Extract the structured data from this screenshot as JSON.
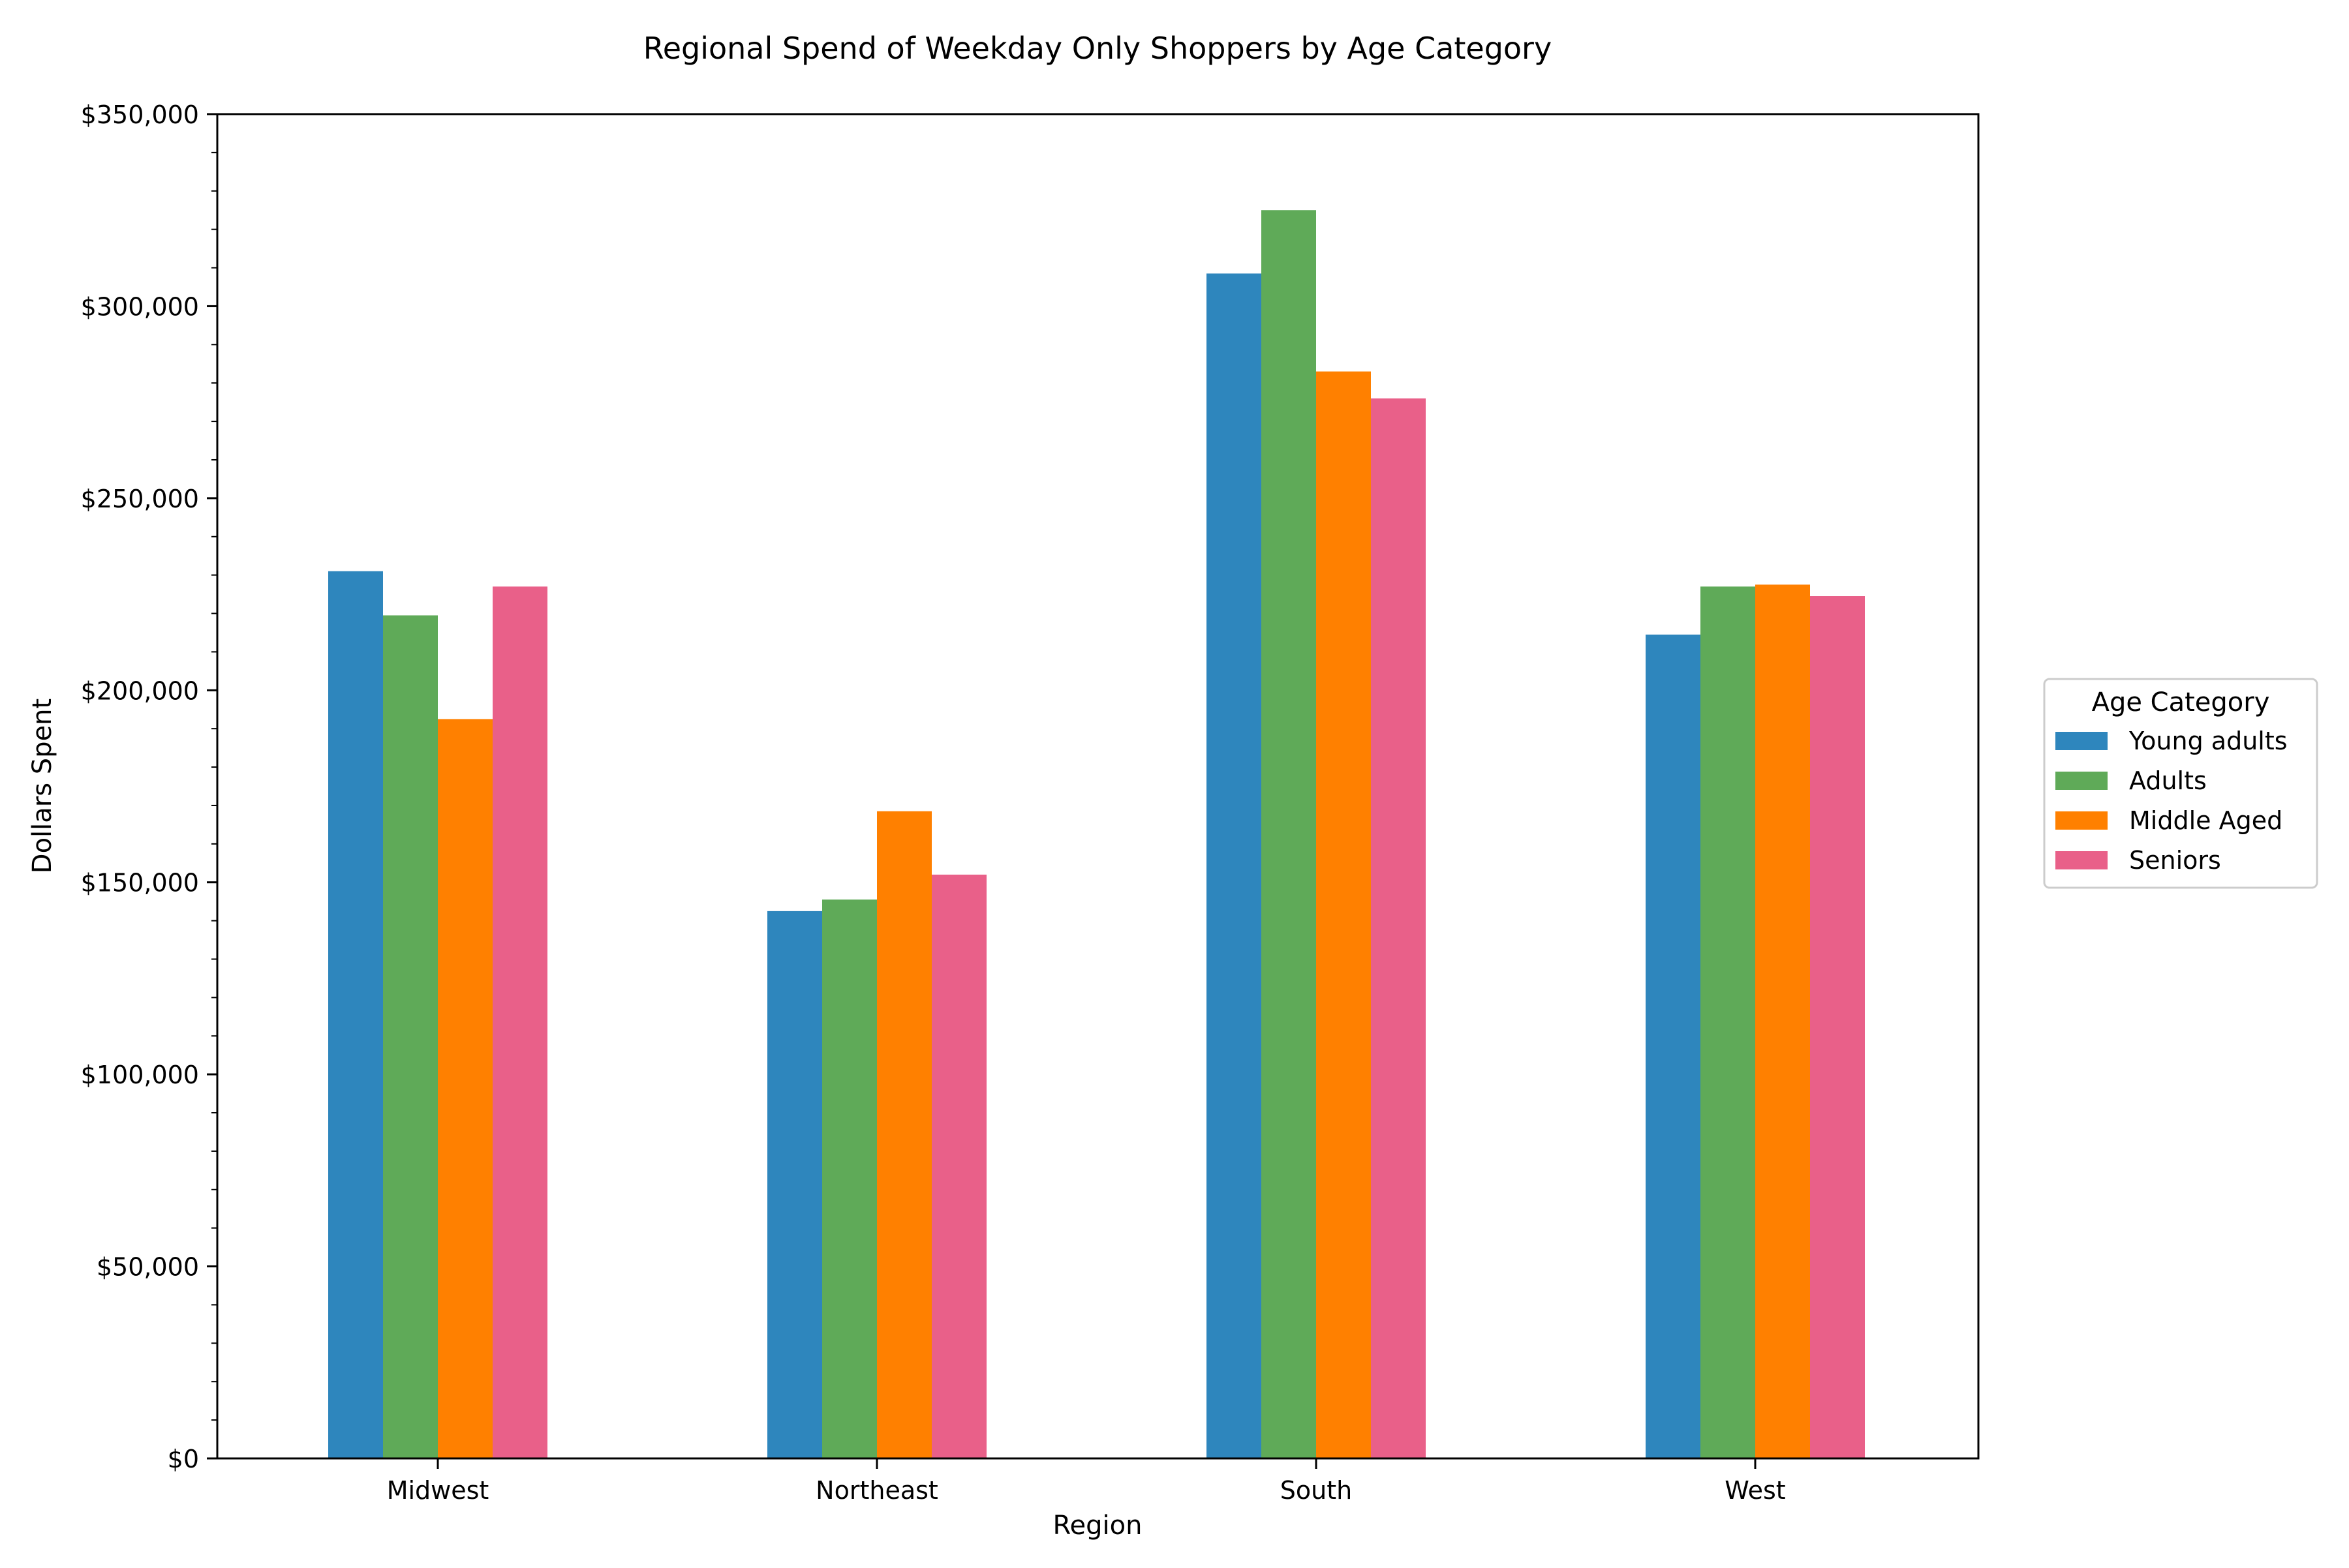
{
  "chart_data": {
    "type": "bar",
    "title": "Regional Spend of Weekday Only Shoppers by Age Category",
    "xlabel": "Region",
    "ylabel": "Dollars Spent",
    "categories": [
      "Midwest",
      "Northeast",
      "South",
      "West"
    ],
    "ylim": [
      0,
      350000
    ],
    "yticks": [
      0,
      50000,
      100000,
      150000,
      200000,
      250000,
      300000,
      350000
    ],
    "ytick_labels": [
      "$0",
      "$50,000",
      "$100,000",
      "$150,000",
      "$200,000",
      "$250,000",
      "$300,000",
      "$350,000"
    ],
    "grid": false,
    "legend": {
      "title": "Age Category",
      "placement": "right, outside plot"
    },
    "series": [
      {
        "name": "Young adults",
        "color": "#2e86bd",
        "values": [
          231000,
          142500,
          308500,
          214500
        ]
      },
      {
        "name": "Adults",
        "color": "#5faa58",
        "values": [
          219500,
          145500,
          325000,
          227000
        ]
      },
      {
        "name": "Middle Aged",
        "color": "#ff8000",
        "values": [
          192500,
          168500,
          283000,
          227500
        ]
      },
      {
        "name": "Seniors",
        "color": "#e96089",
        "values": [
          227000,
          152000,
          276000,
          224500
        ]
      }
    ]
  }
}
